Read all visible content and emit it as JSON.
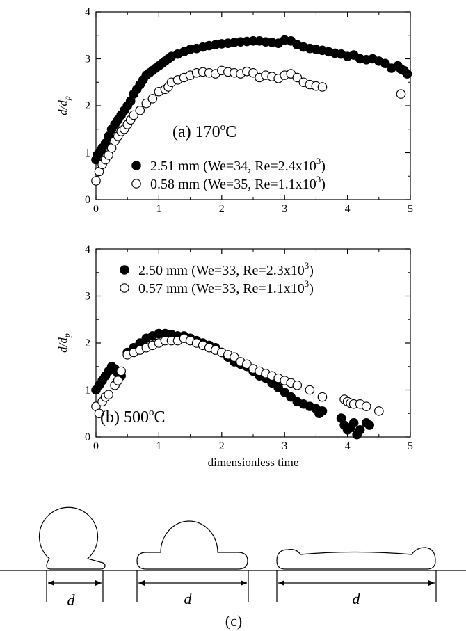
{
  "chart_data": [
    {
      "type": "scatter",
      "panel_label": "(a) 170",
      "panel_temp_sup": "o",
      "panel_temp_unit": "C",
      "ylabel": "d/dp",
      "xlabel": "",
      "xlim": [
        0,
        5
      ],
      "ylim": [
        0,
        4
      ],
      "xticks": [
        "0",
        "1",
        "2",
        "3",
        "4",
        "5"
      ],
      "yticks": [
        "0",
        "1",
        "2",
        "3",
        "4"
      ],
      "legend_position": "bottom",
      "series": [
        {
          "name": "2.51 mm (We=34, Re=2.4x10",
          "name_sup": "3",
          "name_suffix": ")",
          "marker": "filled",
          "x": [
            0.0,
            0.02,
            0.05,
            0.08,
            0.1,
            0.15,
            0.2,
            0.25,
            0.3,
            0.35,
            0.4,
            0.45,
            0.5,
            0.55,
            0.6,
            0.65,
            0.7,
            0.75,
            0.8,
            0.85,
            0.9,
            0.95,
            1.0,
            1.05,
            1.1,
            1.15,
            1.2,
            1.3,
            1.4,
            1.5,
            1.6,
            1.7,
            1.8,
            1.9,
            2.0,
            2.1,
            2.2,
            2.3,
            2.4,
            2.5,
            2.6,
            2.7,
            2.8,
            2.9,
            3.0,
            3.1,
            3.2,
            3.3,
            3.4,
            3.5,
            3.6,
            3.7,
            3.8,
            3.9,
            4.0,
            4.1,
            4.2,
            4.3,
            4.4,
            4.5,
            4.6,
            4.7,
            4.8,
            4.85,
            4.9,
            4.95
          ],
          "y": [
            0.85,
            0.95,
            1.0,
            1.05,
            1.1,
            1.2,
            1.35,
            1.5,
            1.6,
            1.7,
            1.8,
            1.9,
            2.0,
            2.1,
            2.25,
            2.35,
            2.45,
            2.55,
            2.65,
            2.7,
            2.75,
            2.8,
            2.85,
            2.9,
            2.95,
            3.0,
            3.05,
            3.1,
            3.15,
            3.2,
            3.22,
            3.25,
            3.28,
            3.3,
            3.32,
            3.33,
            3.35,
            3.36,
            3.37,
            3.38,
            3.38,
            3.36,
            3.35,
            3.33,
            3.4,
            3.38,
            3.3,
            3.25,
            3.22,
            3.2,
            3.18,
            3.15,
            3.12,
            3.1,
            3.05,
            3.08,
            3.0,
            2.98,
            3.0,
            2.95,
            2.9,
            2.8,
            2.85,
            2.78,
            2.75,
            2.68
          ]
        },
        {
          "name": "0.58 mm (We=35, Re=1.1x10",
          "name_sup": "3",
          "name_suffix": ")",
          "marker": "open",
          "x": [
            0.0,
            0.05,
            0.1,
            0.15,
            0.2,
            0.25,
            0.3,
            0.35,
            0.4,
            0.45,
            0.5,
            0.55,
            0.6,
            0.7,
            0.8,
            0.9,
            1.0,
            1.1,
            1.15,
            1.2,
            1.3,
            1.4,
            1.5,
            1.6,
            1.7,
            1.8,
            1.9,
            2.0,
            2.1,
            2.2,
            2.3,
            2.4,
            2.5,
            2.6,
            2.7,
            2.8,
            2.9,
            3.0,
            3.1,
            3.2,
            3.3,
            3.4,
            3.5,
            3.6,
            4.85
          ],
          "y": [
            0.4,
            0.6,
            0.75,
            0.85,
            0.95,
            1.1,
            1.25,
            1.35,
            1.45,
            1.5,
            1.6,
            1.7,
            1.8,
            1.9,
            2.05,
            2.15,
            2.3,
            2.35,
            2.4,
            2.5,
            2.55,
            2.6,
            2.65,
            2.7,
            2.72,
            2.7,
            2.68,
            2.75,
            2.72,
            2.7,
            2.68,
            2.73,
            2.7,
            2.6,
            2.65,
            2.62,
            2.58,
            2.65,
            2.68,
            2.6,
            2.5,
            2.45,
            2.42,
            2.4,
            2.25
          ]
        }
      ]
    },
    {
      "type": "scatter",
      "panel_label": "(b) 500",
      "panel_temp_sup": "o",
      "panel_temp_unit": "C",
      "ylabel": "d/dp",
      "xlabel": "dimensionless time",
      "xlim": [
        0,
        5
      ],
      "ylim": [
        0,
        4
      ],
      "xticks": [
        "0",
        "1",
        "2",
        "3",
        "4",
        "5"
      ],
      "yticks": [
        "0",
        "1",
        "2",
        "3",
        "4"
      ],
      "legend_position": "top",
      "series": [
        {
          "name": "2.50 mm (We=33, Re=2.3x10",
          "name_sup": "3",
          "name_suffix": ")",
          "marker": "filled",
          "x": [
            0.0,
            0.05,
            0.1,
            0.15,
            0.2,
            0.25,
            0.3,
            0.35,
            0.4,
            0.5,
            0.6,
            0.7,
            0.8,
            0.9,
            1.0,
            1.1,
            1.2,
            1.3,
            1.4,
            1.5,
            1.6,
            1.7,
            1.8,
            1.9,
            2.0,
            2.1,
            2.2,
            2.3,
            2.4,
            2.5,
            2.6,
            2.7,
            2.8,
            2.9,
            3.0,
            3.1,
            3.2,
            3.3,
            3.4,
            3.5,
            3.55,
            3.6,
            3.9,
            3.95,
            4.0,
            4.05,
            4.1,
            4.15,
            4.2,
            4.3,
            4.35
          ],
          "y": [
            1.0,
            1.1,
            1.2,
            1.3,
            1.4,
            1.5,
            1.45,
            1.35,
            1.3,
            1.8,
            1.9,
            2.0,
            2.1,
            2.15,
            2.2,
            2.2,
            2.18,
            2.15,
            2.15,
            2.1,
            2.05,
            2.0,
            1.95,
            1.9,
            1.8,
            1.7,
            1.6,
            1.55,
            1.5,
            1.4,
            1.3,
            1.25,
            1.15,
            1.05,
            0.95,
            0.85,
            0.75,
            0.7,
            0.65,
            0.6,
            0.5,
            0.55,
            0.4,
            0.25,
            0.15,
            0.2,
            0.3,
            0.05,
            0.15,
            0.3,
            0.25
          ]
        },
        {
          "name": "0.57 mm (We=33, Re=1.1x10",
          "name_sup": "3",
          "name_suffix": ")",
          "marker": "open",
          "x": [
            0.0,
            0.05,
            0.1,
            0.15,
            0.2,
            0.3,
            0.35,
            0.4,
            0.5,
            0.6,
            0.7,
            0.8,
            0.9,
            1.0,
            1.1,
            1.2,
            1.3,
            1.4,
            1.5,
            1.6,
            1.7,
            1.8,
            1.9,
            2.0,
            2.1,
            2.2,
            2.3,
            2.4,
            2.5,
            2.6,
            2.7,
            2.8,
            2.9,
            3.0,
            3.1,
            3.2,
            3.4,
            3.6,
            3.95,
            4.0,
            4.05,
            4.1,
            4.2,
            4.3,
            4.5
          ],
          "y": [
            0.65,
            0.5,
            0.75,
            0.85,
            0.9,
            1.1,
            1.2,
            1.4,
            1.75,
            1.8,
            1.85,
            1.9,
            1.95,
            2.0,
            2.05,
            2.05,
            2.05,
            2.1,
            2.05,
            2.0,
            1.95,
            1.9,
            1.85,
            1.8,
            1.75,
            1.7,
            1.6,
            1.55,
            1.45,
            1.4,
            1.35,
            1.3,
            1.25,
            1.2,
            1.15,
            1.1,
            1.0,
            0.85,
            0.8,
            0.75,
            0.72,
            0.7,
            0.7,
            0.65,
            0.55
          ]
        }
      ]
    }
  ],
  "diagram": {
    "dimension_label": "d",
    "caption": "(c)"
  },
  "colors": {
    "ink": "#000000",
    "paper": "#ffffff"
  }
}
